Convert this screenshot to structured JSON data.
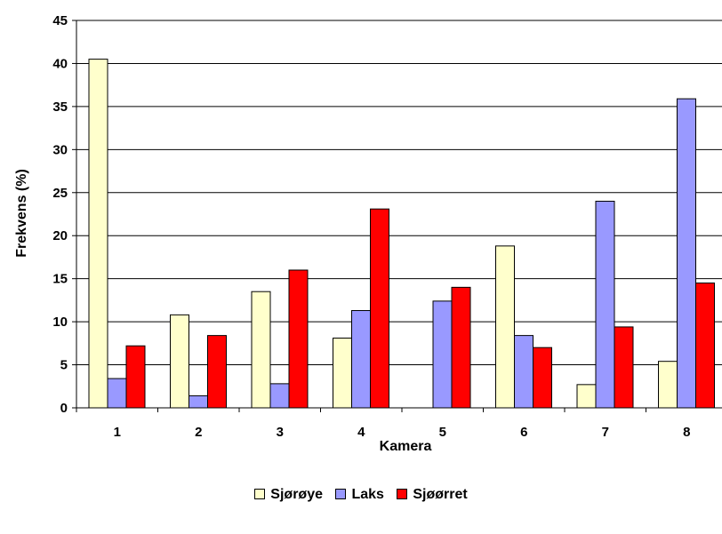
{
  "chart_data": {
    "type": "bar",
    "categories": [
      "1",
      "2",
      "3",
      "4",
      "5",
      "6",
      "7",
      "8"
    ],
    "series": [
      {
        "name": "Sjørøye",
        "color": "#ffffcc",
        "values": [
          40.5,
          10.8,
          13.5,
          8.1,
          0,
          18.8,
          2.7,
          5.4
        ]
      },
      {
        "name": "Laks",
        "color": "#9999ff",
        "values": [
          3.4,
          1.4,
          2.8,
          11.3,
          12.4,
          8.4,
          24.0,
          35.9
        ]
      },
      {
        "name": "Sjøørret",
        "color": "#ff0000",
        "values": [
          7.2,
          8.4,
          16.0,
          23.1,
          14.0,
          7.0,
          9.4,
          14.5
        ]
      }
    ],
    "xlabel": "Kamera",
    "ylabel": "Frekvens (%)",
    "ylim": [
      0,
      45
    ],
    "yticks": [
      "0",
      "5",
      "10",
      "15",
      "20",
      "25",
      "30",
      "35",
      "40",
      "45"
    ],
    "grid": true,
    "legend": "bottom"
  }
}
